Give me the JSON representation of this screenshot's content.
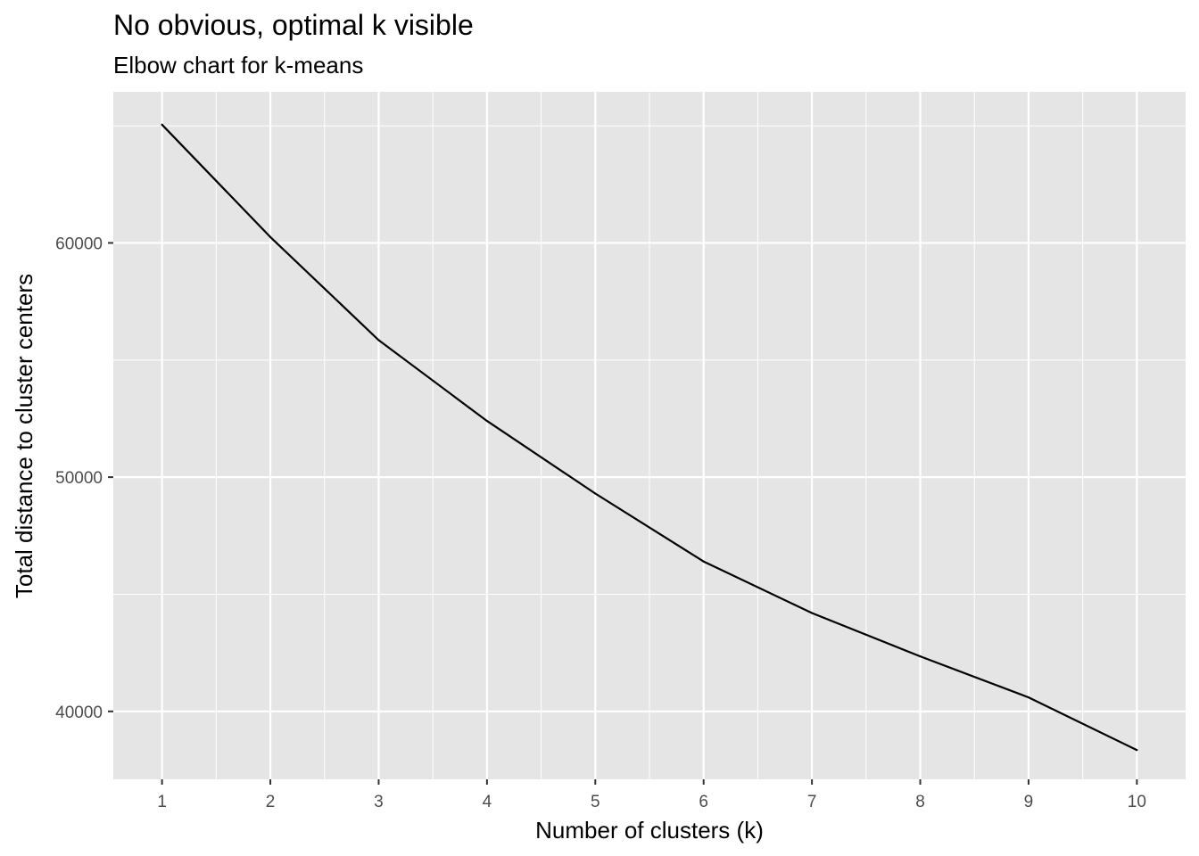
{
  "chart_data": {
    "type": "line",
    "title": "No obvious, optimal k visible",
    "subtitle": "Elbow chart for k-means",
    "xlabel": "Number of clusters (k)",
    "ylabel": "Total distance to cluster centers",
    "x": [
      1,
      2,
      3,
      4,
      5,
      6,
      7,
      8,
      9,
      10
    ],
    "series": [
      {
        "values": [
          65050,
          60250,
          55850,
          52400,
          49300,
          46400,
          44200,
          42350,
          40600,
          38350
        ]
      }
    ],
    "x_ticks": [
      "1",
      "2",
      "3",
      "4",
      "5",
      "6",
      "7",
      "8",
      "9",
      "10"
    ],
    "y_ticks": [
      {
        "value": 40000,
        "label": "40000"
      },
      {
        "value": 50000,
        "label": "50000"
      },
      {
        "value": 60000,
        "label": "60000"
      }
    ],
    "xlim": [
      0.55,
      10.45
    ],
    "ylim": [
      37100,
      66450
    ],
    "grid": true,
    "panel_background": "#e5e5e5",
    "grid_color": "#ffffff",
    "line_color": "#000000"
  }
}
